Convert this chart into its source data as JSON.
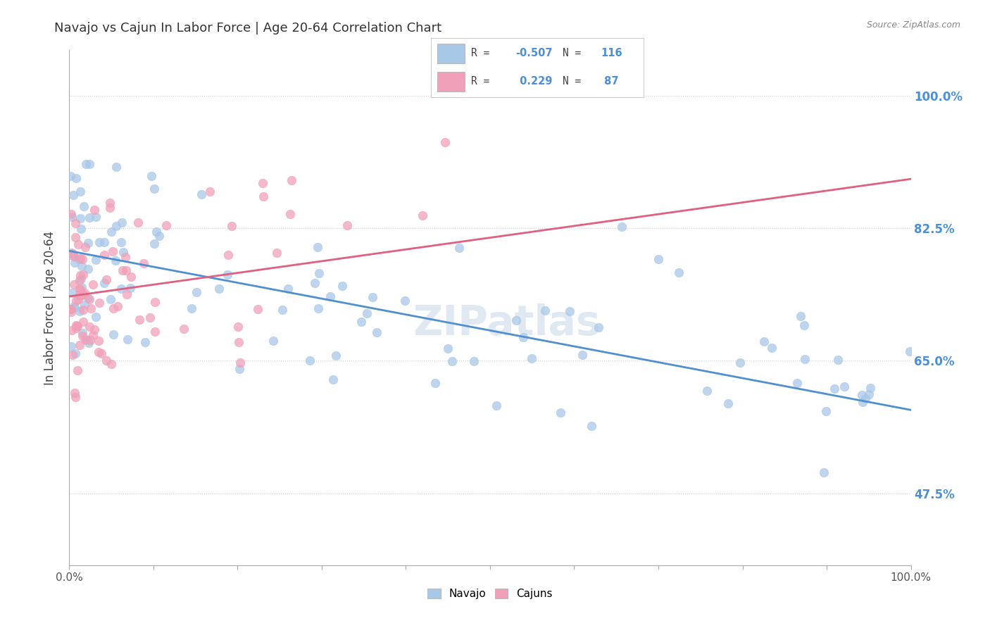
{
  "title": "Navajo vs Cajun In Labor Force | Age 20-64 Correlation Chart",
  "source": "Source: ZipAtlas.com",
  "ylabel": "In Labor Force | Age 20-64",
  "ytick_labels": [
    "47.5%",
    "65.0%",
    "82.5%",
    "100.0%"
  ],
  "ytick_values": [
    0.475,
    0.65,
    0.825,
    1.0
  ],
  "xlim": [
    0.0,
    1.0
  ],
  "ylim": [
    0.38,
    1.06
  ],
  "navajo_color": "#a8c8e8",
  "cajun_color": "#f0a0b8",
  "navajo_line_color": "#5090d0",
  "cajun_line_color": "#e06080",
  "legend_navajo_R": "-0.507",
  "legend_navajo_N": "116",
  "legend_cajun_R": "0.229",
  "legend_cajun_N": "87",
  "watermark": "ZIPatlas",
  "background_color": "#ffffff",
  "grid_color": "#d0d0d0",
  "grid_style": ":",
  "marker_size": 9,
  "marker_alpha": 0.75,
  "line_width": 2.0,
  "nav_slope": -0.21,
  "nav_intercept": 0.795,
  "caj_slope": 0.155,
  "caj_intercept": 0.735
}
